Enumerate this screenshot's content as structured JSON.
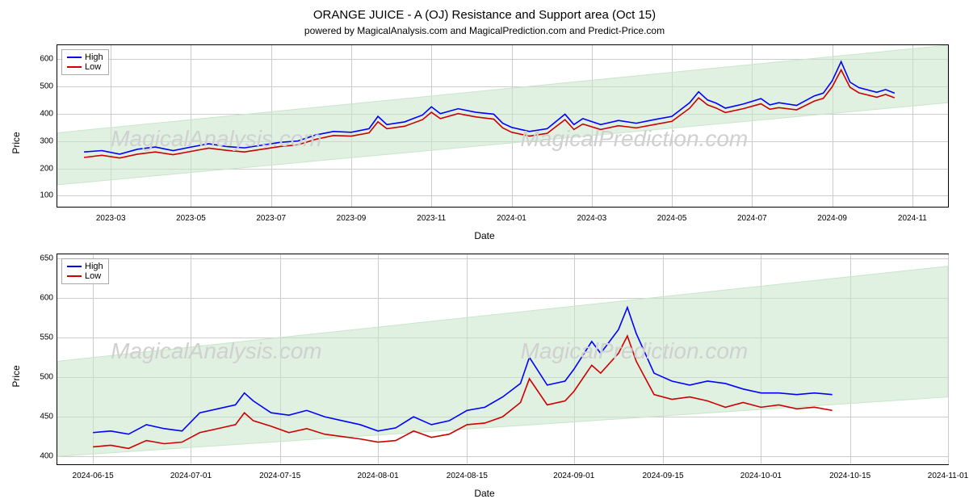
{
  "title": "ORANGE JUICE - A (OJ) Resistance and Support area (Oct 15)",
  "subtitle": "powered by MagicalAnalysis.com and MagicalPrediction.com and Predict-Price.com",
  "legend": {
    "high": "High",
    "low": "Low"
  },
  "colors": {
    "high": "#0000ff",
    "low": "#cc0000",
    "grid": "#cccccc",
    "band": "#c8e6c9",
    "band_opacity": 0.55,
    "watermark": "#d0d0d0",
    "border": "#000000",
    "background": "#ffffff"
  },
  "watermarks": [
    "MagicalAnalysis.com",
    "MagicalPrediction.com"
  ],
  "chart_top": {
    "type": "line",
    "xlabel": "Date",
    "ylabel": "Price",
    "x_domain": [
      0,
      100
    ],
    "ylim": [
      60,
      650
    ],
    "ytick_step": 100,
    "yticks": [
      100,
      200,
      300,
      400,
      500,
      600
    ],
    "xticks": [
      {
        "pos": 6,
        "label": "2023-03"
      },
      {
        "pos": 15,
        "label": "2023-05"
      },
      {
        "pos": 24,
        "label": "2023-07"
      },
      {
        "pos": 33,
        "label": "2023-09"
      },
      {
        "pos": 42,
        "label": "2023-11"
      },
      {
        "pos": 51,
        "label": "2024-01"
      },
      {
        "pos": 60,
        "label": "2024-03"
      },
      {
        "pos": 69,
        "label": "2024-05"
      },
      {
        "pos": 78,
        "label": "2024-07"
      },
      {
        "pos": 87,
        "label": "2024-09"
      },
      {
        "pos": 96,
        "label": "2024-11"
      }
    ],
    "band": {
      "x": [
        0,
        100
      ],
      "y_low": [
        140,
        440
      ],
      "y_high": [
        330,
        650
      ]
    },
    "series_high": [
      [
        3,
        260
      ],
      [
        5,
        265
      ],
      [
        7,
        252
      ],
      [
        9,
        270
      ],
      [
        11,
        278
      ],
      [
        13,
        265
      ],
      [
        15,
        278
      ],
      [
        17,
        290
      ],
      [
        19,
        280
      ],
      [
        21,
        275
      ],
      [
        23,
        285
      ],
      [
        25,
        295
      ],
      [
        27,
        300
      ],
      [
        29,
        322
      ],
      [
        31,
        335
      ],
      [
        33,
        332
      ],
      [
        35,
        345
      ],
      [
        36,
        390
      ],
      [
        37,
        360
      ],
      [
        39,
        370
      ],
      [
        41,
        395
      ],
      [
        42,
        425
      ],
      [
        43,
        400
      ],
      [
        45,
        418
      ],
      [
        47,
        405
      ],
      [
        49,
        398
      ],
      [
        50,
        365
      ],
      [
        51,
        350
      ],
      [
        53,
        335
      ],
      [
        55,
        345
      ],
      [
        57,
        398
      ],
      [
        58,
        360
      ],
      [
        59,
        382
      ],
      [
        61,
        360
      ],
      [
        63,
        375
      ],
      [
        65,
        365
      ],
      [
        67,
        378
      ],
      [
        69,
        390
      ],
      [
        71,
        440
      ],
      [
        72,
        480
      ],
      [
        73,
        450
      ],
      [
        74,
        438
      ],
      [
        75,
        420
      ],
      [
        77,
        435
      ],
      [
        79,
        455
      ],
      [
        80,
        432
      ],
      [
        81,
        440
      ],
      [
        83,
        430
      ],
      [
        85,
        465
      ],
      [
        86,
        475
      ],
      [
        87,
        520
      ],
      [
        88,
        590
      ],
      [
        89,
        515
      ],
      [
        90,
        495
      ],
      [
        92,
        478
      ],
      [
        93,
        488
      ],
      [
        94,
        475
      ]
    ],
    "series_low": [
      [
        3,
        240
      ],
      [
        5,
        248
      ],
      [
        7,
        238
      ],
      [
        9,
        252
      ],
      [
        11,
        260
      ],
      [
        13,
        250
      ],
      [
        15,
        262
      ],
      [
        17,
        274
      ],
      [
        19,
        266
      ],
      [
        21,
        260
      ],
      [
        23,
        270
      ],
      [
        25,
        280
      ],
      [
        27,
        286
      ],
      [
        29,
        306
      ],
      [
        31,
        320
      ],
      [
        33,
        318
      ],
      [
        35,
        330
      ],
      [
        36,
        370
      ],
      [
        37,
        345
      ],
      [
        39,
        354
      ],
      [
        41,
        378
      ],
      [
        42,
        405
      ],
      [
        43,
        382
      ],
      [
        45,
        400
      ],
      [
        47,
        388
      ],
      [
        49,
        380
      ],
      [
        50,
        348
      ],
      [
        51,
        332
      ],
      [
        53,
        318
      ],
      [
        55,
        328
      ],
      [
        57,
        378
      ],
      [
        58,
        342
      ],
      [
        59,
        362
      ],
      [
        61,
        342
      ],
      [
        63,
        356
      ],
      [
        65,
        348
      ],
      [
        67,
        360
      ],
      [
        69,
        372
      ],
      [
        71,
        420
      ],
      [
        72,
        458
      ],
      [
        73,
        432
      ],
      [
        74,
        420
      ],
      [
        75,
        404
      ],
      [
        77,
        418
      ],
      [
        79,
        436
      ],
      [
        80,
        416
      ],
      [
        81,
        422
      ],
      [
        83,
        414
      ],
      [
        85,
        446
      ],
      [
        86,
        456
      ],
      [
        87,
        498
      ],
      [
        88,
        560
      ],
      [
        89,
        496
      ],
      [
        90,
        476
      ],
      [
        92,
        460
      ],
      [
        93,
        470
      ],
      [
        94,
        458
      ]
    ]
  },
  "chart_bot": {
    "type": "line",
    "xlabel": "Date",
    "ylabel": "Price",
    "x_domain": [
      0,
      100
    ],
    "ylim": [
      390,
      655
    ],
    "ytick_step": 50,
    "yticks": [
      400,
      450,
      500,
      550,
      600,
      650
    ],
    "xticks": [
      {
        "pos": 4,
        "label": "2024-06-15"
      },
      {
        "pos": 15,
        "label": "2024-07-01"
      },
      {
        "pos": 25,
        "label": "2024-07-15"
      },
      {
        "pos": 36,
        "label": "2024-08-01"
      },
      {
        "pos": 46,
        "label": "2024-08-15"
      },
      {
        "pos": 58,
        "label": "2024-09-01"
      },
      {
        "pos": 68,
        "label": "2024-09-15"
      },
      {
        "pos": 79,
        "label": "2024-10-01"
      },
      {
        "pos": 89,
        "label": "2024-10-15"
      },
      {
        "pos": 100,
        "label": "2024-11-01"
      }
    ],
    "band": {
      "x": [
        0,
        100
      ],
      "y_low": [
        400,
        475
      ],
      "y_high": [
        520,
        640
      ]
    },
    "series_high": [
      [
        4,
        430
      ],
      [
        6,
        432
      ],
      [
        8,
        428
      ],
      [
        10,
        440
      ],
      [
        12,
        435
      ],
      [
        14,
        432
      ],
      [
        16,
        455
      ],
      [
        18,
        460
      ],
      [
        20,
        465
      ],
      [
        21,
        480
      ],
      [
        22,
        470
      ],
      [
        24,
        455
      ],
      [
        26,
        452
      ],
      [
        28,
        458
      ],
      [
        30,
        450
      ],
      [
        32,
        445
      ],
      [
        34,
        440
      ],
      [
        36,
        432
      ],
      [
        38,
        436
      ],
      [
        40,
        450
      ],
      [
        42,
        440
      ],
      [
        44,
        445
      ],
      [
        46,
        458
      ],
      [
        48,
        462
      ],
      [
        50,
        475
      ],
      [
        52,
        492
      ],
      [
        53,
        525
      ],
      [
        55,
        490
      ],
      [
        57,
        495
      ],
      [
        58,
        510
      ],
      [
        60,
        545
      ],
      [
        61,
        530
      ],
      [
        63,
        560
      ],
      [
        64,
        588
      ],
      [
        65,
        555
      ],
      [
        67,
        505
      ],
      [
        69,
        495
      ],
      [
        71,
        490
      ],
      [
        73,
        495
      ],
      [
        75,
        492
      ],
      [
        77,
        485
      ],
      [
        79,
        480
      ],
      [
        81,
        480
      ],
      [
        83,
        478
      ],
      [
        85,
        480
      ],
      [
        87,
        478
      ]
    ],
    "series_low": [
      [
        4,
        412
      ],
      [
        6,
        414
      ],
      [
        8,
        410
      ],
      [
        10,
        420
      ],
      [
        12,
        416
      ],
      [
        14,
        418
      ],
      [
        16,
        430
      ],
      [
        18,
        435
      ],
      [
        20,
        440
      ],
      [
        21,
        455
      ],
      [
        22,
        445
      ],
      [
        24,
        438
      ],
      [
        26,
        430
      ],
      [
        28,
        435
      ],
      [
        30,
        428
      ],
      [
        32,
        425
      ],
      [
        34,
        422
      ],
      [
        36,
        418
      ],
      [
        38,
        420
      ],
      [
        40,
        432
      ],
      [
        42,
        424
      ],
      [
        44,
        428
      ],
      [
        46,
        440
      ],
      [
        48,
        442
      ],
      [
        50,
        450
      ],
      [
        52,
        468
      ],
      [
        53,
        498
      ],
      [
        55,
        465
      ],
      [
        57,
        470
      ],
      [
        58,
        482
      ],
      [
        60,
        515
      ],
      [
        61,
        505
      ],
      [
        63,
        530
      ],
      [
        64,
        552
      ],
      [
        65,
        520
      ],
      [
        67,
        478
      ],
      [
        69,
        472
      ],
      [
        71,
        475
      ],
      [
        73,
        470
      ],
      [
        75,
        462
      ],
      [
        77,
        468
      ],
      [
        79,
        462
      ],
      [
        81,
        465
      ],
      [
        83,
        460
      ],
      [
        85,
        462
      ],
      [
        87,
        458
      ]
    ]
  }
}
